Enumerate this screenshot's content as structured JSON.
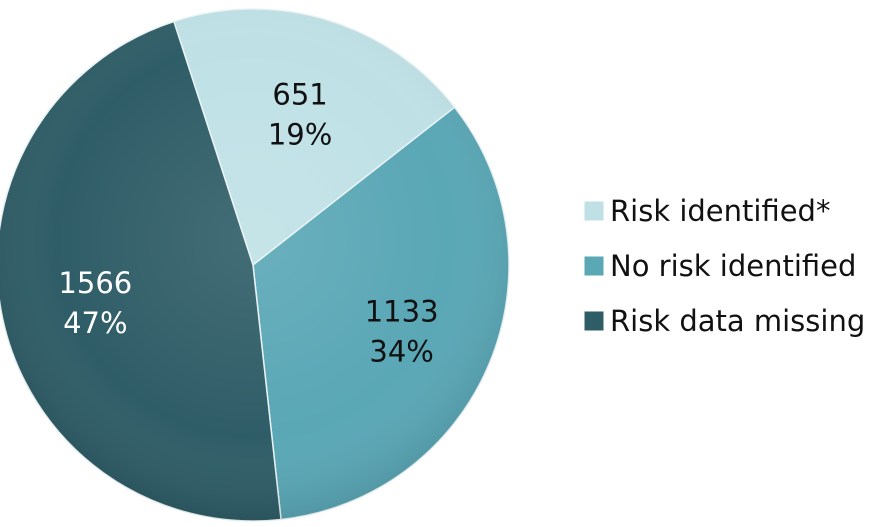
{
  "chart_data": {
    "type": "pie",
    "title": "",
    "slices": [
      {
        "name": "Risk identified*",
        "value": 651,
        "percent_label": "19%",
        "value_label": "651",
        "color": "#bfe1e6",
        "label_color": "#111111"
      },
      {
        "name": "No risk identified",
        "value": 1133,
        "percent_label": "34%",
        "value_label": "1133",
        "color": "#5aa7b6",
        "label_color": "#111111"
      },
      {
        "name": "Risk data missing",
        "value": 1566,
        "percent_label": "47%",
        "value_label": "1566",
        "color": "#2f5d67",
        "label_color": "#ffffff"
      }
    ],
    "legend_position": "right"
  }
}
